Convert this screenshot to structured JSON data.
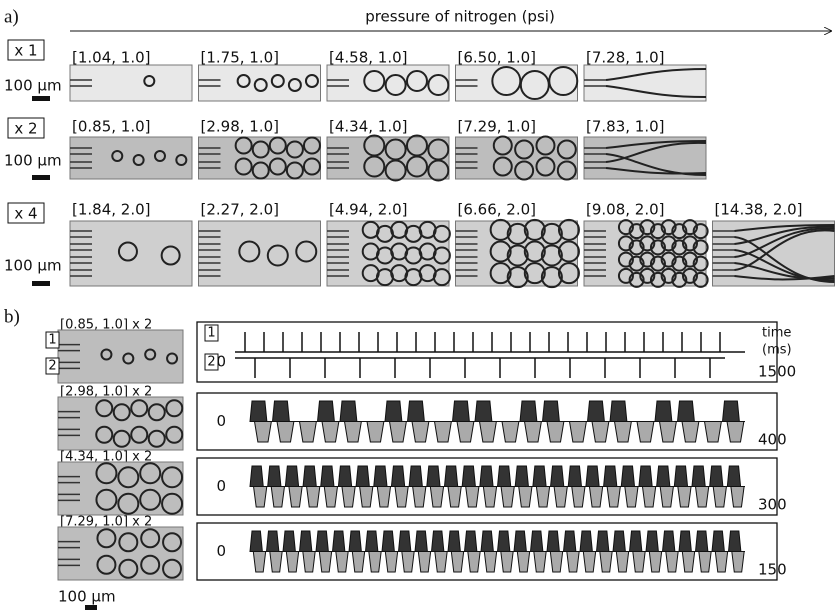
{
  "panel_a": {
    "label": "a)",
    "axis_label": "pressure of nitrogen (psi)",
    "rows": [
      {
        "multiplier": "x 1",
        "scale": "100 μm",
        "conditions": [
          "[1.04, 1.0]",
          "[1.75, 1.0]",
          "[4.58, 1.0]",
          "[6.50, 1.0]",
          "[7.28, 1.0]"
        ]
      },
      {
        "multiplier": "x 2",
        "scale": "100 μm",
        "conditions": [
          "[0.85, 1.0]",
          "[2.98, 1.0]",
          "[4.34, 1.0]",
          "[7.29, 1.0]",
          "[7.83, 1.0]"
        ]
      },
      {
        "multiplier": "x 4",
        "scale": "100 μm",
        "conditions": [
          "[1.84, 2.0]",
          "[2.27, 2.0]",
          "[4.94, 2.0]",
          "[6.66, 2.0]",
          "[9.08, 2.0]",
          "[14.38, 2.0]"
        ]
      }
    ]
  },
  "panel_b": {
    "label": "b)",
    "channel_labels": [
      "1",
      "2"
    ],
    "time_label": "time",
    "time_unit": "(ms)",
    "zero": "0",
    "scale": "100 μm",
    "rows": [
      {
        "condition": "[0.85, 1.0] x 2",
        "time_span": "1500"
      },
      {
        "condition": "[2.98, 1.0] x 2",
        "time_span": "400"
      },
      {
        "condition": "[4.34, 1.0] x 2",
        "time_span": "300"
      },
      {
        "condition": "[7.29, 1.0] x 2",
        "time_span": "150"
      }
    ]
  }
}
